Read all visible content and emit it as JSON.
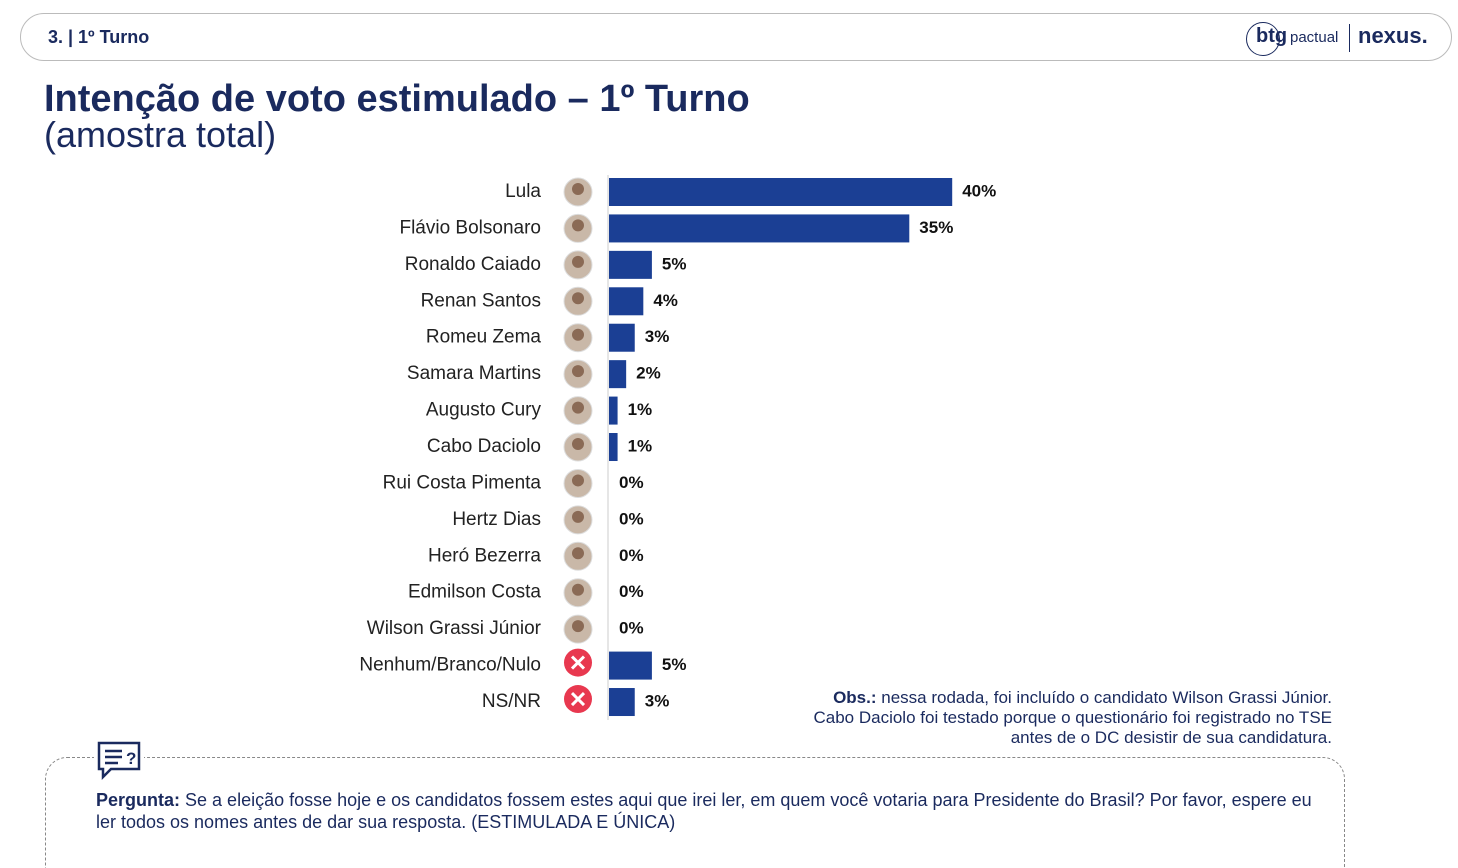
{
  "header": {
    "section": "3. | 1º Turno",
    "logo_left": "btg",
    "logo_left_sub": "pactual",
    "logo_right": "nexus."
  },
  "chart_data": {
    "type": "bar",
    "orientation": "horizontal",
    "title": "Intenção de voto estimulado – 1º Turno",
    "subtitle": "(amostra total)",
    "categories": [
      "Lula",
      "Flávio Bolsonaro",
      "Ronaldo Caiado",
      "Renan Santos",
      "Romeu Zema",
      "Samara Martins",
      "Augusto Cury",
      "Cabo Daciolo",
      "Rui Costa Pimenta",
      "Hertz Dias",
      "Heró Bezerra",
      "Edmilson Costa",
      "Wilson Grassi Júnior",
      "Nenhum/Branco/Nulo",
      "NS/NR"
    ],
    "values": [
      40,
      35,
      5,
      4,
      3,
      2,
      1,
      1,
      0,
      0,
      0,
      0,
      0,
      5,
      3
    ],
    "value_labels": [
      "40%",
      "35%",
      "5%",
      "4%",
      "3%",
      "2%",
      "1%",
      "1%",
      "0%",
      "0%",
      "0%",
      "0%",
      "0%",
      "5%",
      "3%"
    ],
    "color": "#1b3f94"
  },
  "note": {
    "label": "Obs.:",
    "text": "nessa rodada, foi incluído o candidato Wilson Grassi Júnior. Cabo Daciolo foi testado porque o questionário foi registrado no TSE antes de o DC desistir de sua candidatura."
  },
  "question": {
    "label": "Pergunta:",
    "text": "Se a eleição fosse hoje e os candidatos fossem estes aqui que irei ler, em quem você votaria para Presidente do Brasil? Por favor, espere eu ler todos os nomes antes de dar sua resposta. (ESTIMULADA E ÚNICA)"
  }
}
